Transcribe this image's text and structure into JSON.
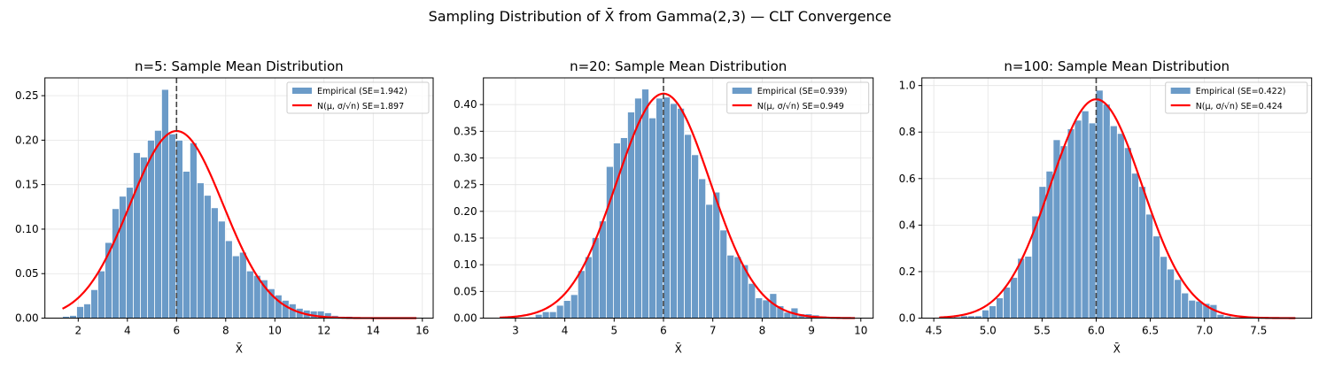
{
  "suptitle": "Sampling Distribution of X̄ from Gamma(2,3) — CLT Convergence",
  "chart_data": [
    {
      "type": "bar",
      "title": "n=5: Sample Mean Distribution",
      "xlabel": "X̄",
      "ylabel": "",
      "xlim": [
        0.645,
        16.44
      ],
      "ylim": [
        0,
        0.27
      ],
      "xticks": [
        2,
        4,
        6,
        8,
        10,
        12,
        14,
        16
      ],
      "xtick_labels": [
        "2",
        "4",
        "6",
        "8",
        "10",
        "12",
        "14",
        "16"
      ],
      "yticks": [
        0,
        0.05,
        0.1,
        0.15,
        0.2,
        0.25
      ],
      "ytick_labels": [
        "0.00",
        "0.05",
        "0.10",
        "0.15",
        "0.20",
        "0.25"
      ],
      "grid": true,
      "legend_position": "top-right",
      "hist_range": [
        1.36,
        15.76
      ],
      "density_values": [
        0.002,
        0.003,
        0.013,
        0.016,
        0.032,
        0.053,
        0.085,
        0.123,
        0.137,
        0.147,
        0.186,
        0.181,
        0.2,
        0.211,
        0.257,
        0.207,
        0.2,
        0.165,
        0.197,
        0.152,
        0.138,
        0.124,
        0.109,
        0.087,
        0.07,
        0.074,
        0.053,
        0.048,
        0.043,
        0.033,
        0.026,
        0.02,
        0.016,
        0.011,
        0.009,
        0.008,
        0.008,
        0.006,
        0.003,
        0.002,
        0.002,
        0.001,
        0.001,
        0.001,
        0.0005,
        0.0005,
        0,
        0,
        0,
        0.0005
      ],
      "mean_line": 6,
      "normal_fit": {
        "mean": 6,
        "se": 1.897,
        "x_range": [
          1.36,
          15.76
        ]
      },
      "series": [
        {
          "name": "Empirical (SE=1.942)",
          "kind": "histogram",
          "color": "#6b9bc8"
        },
        {
          "name": "N(μ, σ/√n) SE=1.897",
          "kind": "line",
          "color": "#ff0000"
        }
      ]
    },
    {
      "type": "bar",
      "title": "n=20: Sample Mean Distribution",
      "xlabel": "X̄",
      "ylabel": "",
      "xlim": [
        2.35,
        10.25
      ],
      "ylim": [
        0,
        0.45
      ],
      "xticks": [
        3,
        4,
        5,
        6,
        7,
        8,
        9,
        10
      ],
      "xtick_labels": [
        "3",
        "4",
        "5",
        "6",
        "7",
        "8",
        "9",
        "10"
      ],
      "yticks": [
        0,
        0.05,
        0.1,
        0.15,
        0.2,
        0.25,
        0.3,
        0.35,
        0.4
      ],
      "ytick_labels": [
        "0.00",
        "0.05",
        "0.10",
        "0.15",
        "0.20",
        "0.25",
        "0.30",
        "0.35",
        "0.40"
      ],
      "grid": true,
      "legend_position": "top-right",
      "hist_range": [
        2.68,
        9.88
      ],
      "density_values": [
        0,
        0.0005,
        0.001,
        0.001,
        0.002,
        0.007,
        0.012,
        0.012,
        0.024,
        0.033,
        0.044,
        0.089,
        0.115,
        0.151,
        0.182,
        0.284,
        0.328,
        0.338,
        0.386,
        0.412,
        0.429,
        0.375,
        0.412,
        0.414,
        0.402,
        0.393,
        0.344,
        0.306,
        0.261,
        0.213,
        0.236,
        0.165,
        0.118,
        0.115,
        0.1,
        0.065,
        0.038,
        0.034,
        0.046,
        0.023,
        0.011,
        0.019,
        0.008,
        0.008,
        0.006,
        0.004,
        0.003,
        0.001,
        0.001,
        0.0005
      ],
      "mean_line": 6,
      "normal_fit": {
        "mean": 6,
        "se": 0.949,
        "x_range": [
          2.68,
          9.88
        ]
      },
      "series": [
        {
          "name": "Empirical (SE=0.939)",
          "kind": "histogram",
          "color": "#6b9bc8"
        },
        {
          "name": "N(μ, σ/√n) SE=0.949",
          "kind": "line",
          "color": "#ff0000"
        }
      ]
    },
    {
      "type": "bar",
      "title": "n=100: Sample Mean Distribution",
      "xlabel": "X̄",
      "ylabel": "",
      "xlim": [
        4.39,
        7.99
      ],
      "ylim": [
        0,
        1.033
      ],
      "xticks": [
        4.5,
        5.0,
        5.5,
        6.0,
        6.5,
        7.0,
        7.5
      ],
      "xtick_labels": [
        "4.5",
        "5.0",
        "5.5",
        "6.0",
        "6.5",
        "7.0",
        "7.5"
      ],
      "yticks": [
        0,
        0.2,
        0.4,
        0.6,
        0.8,
        1.0
      ],
      "ytick_labels": [
        "0.0",
        "0.2",
        "0.4",
        "0.6",
        "0.8",
        "1.0"
      ],
      "grid": true,
      "legend_position": "top-right",
      "hist_range": [
        4.55,
        7.84
      ],
      "density_values": [
        0.002,
        0.003,
        0.005,
        0.01,
        0.01,
        0.01,
        0.035,
        0.053,
        0.087,
        0.133,
        0.175,
        0.257,
        0.266,
        0.439,
        0.566,
        0.632,
        0.767,
        0.741,
        0.814,
        0.851,
        0.891,
        0.839,
        0.98,
        0.92,
        0.827,
        0.794,
        0.733,
        0.623,
        0.566,
        0.447,
        0.353,
        0.265,
        0.211,
        0.166,
        0.108,
        0.077,
        0.073,
        0.063,
        0.058,
        0.016,
        0.009,
        0.004,
        0.002,
        0.001,
        0.001,
        0,
        0,
        0,
        0,
        0.0005
      ],
      "mean_line": 6,
      "normal_fit": {
        "mean": 6,
        "se": 0.424,
        "x_range": [
          4.55,
          7.84
        ]
      },
      "series": [
        {
          "name": "Empirical (SE=0.422)",
          "kind": "histogram",
          "color": "#6b9bc8"
        },
        {
          "name": "N(μ, σ/√n) SE=0.424",
          "kind": "line",
          "color": "#ff0000"
        }
      ]
    }
  ]
}
